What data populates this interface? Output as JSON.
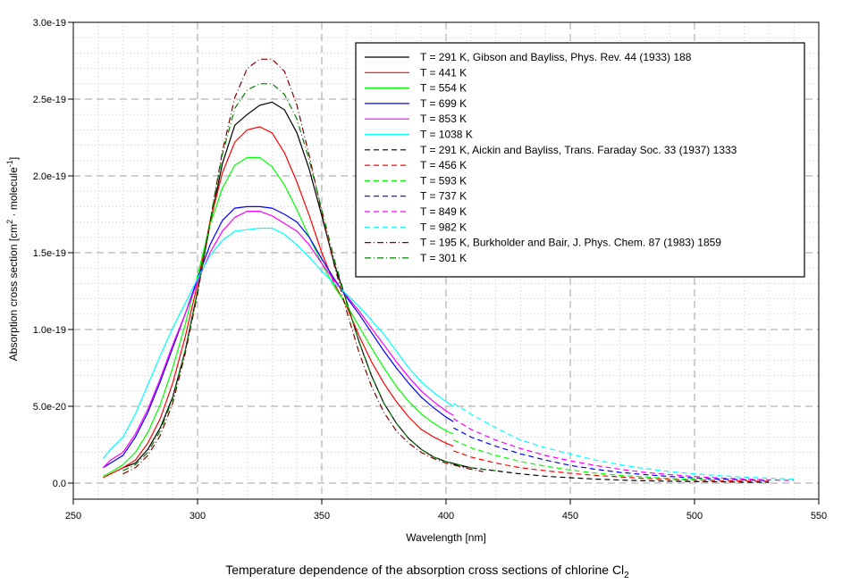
{
  "chart_data": {
    "type": "line",
    "title": "Temperature dependence of the absorption cross sections of chlorine Cl",
    "title_subscript": "2",
    "xlabel": "Wavelength [nm]",
    "ylabel_main": "Absorption cross section [cm",
    "ylabel_sup1": "2",
    "ylabel_mid": " · molecule",
    "ylabel_sup2": "-1",
    "ylabel_end": "]",
    "xlim": [
      250,
      550
    ],
    "ylim": [
      0,
      3e-19
    ],
    "xticks": [
      250,
      300,
      350,
      400,
      450,
      500,
      550
    ],
    "xtick_labels": [
      "250",
      "300",
      "350",
      "400",
      "450",
      "500",
      "550"
    ],
    "yticks": [
      0,
      5e-20,
      1e-19,
      1.5e-19,
      2e-19,
      2.5e-19,
      3e-19
    ],
    "ytick_labels": [
      "0.0",
      "5.0e-20",
      "1.0e-19",
      "1.5e-19",
      "2.0e-19",
      "2.5e-19",
      "3.0e-19"
    ],
    "grid": true,
    "legend_position": "top-right",
    "series": [
      {
        "name": "T = 291 K, Gibson and Bayliss, Phys. Rev. 44 (1933) 188",
        "color": "#000000",
        "style": "solid",
        "x": [
          270,
          275,
          280,
          285,
          290,
          295,
          300,
          305,
          310,
          315,
          320,
          325,
          330,
          335,
          340,
          345,
          350,
          355,
          360,
          365,
          370,
          375,
          380,
          385,
          390,
          395,
          400,
          405,
          410
        ],
        "y": [
          1e-20,
          1.3e-20,
          2.2e-20,
          3.6e-20,
          5.6e-20,
          8.6e-20,
          1.25e-19,
          1.68e-19,
          2.08e-19,
          2.33e-19,
          2.4e-19,
          2.46e-19,
          2.48e-19,
          2.43e-19,
          2.28e-19,
          2.04e-19,
          1.74e-19,
          1.43e-19,
          1.18e-19,
          9.2e-20,
          7e-20,
          5.2e-20,
          3.9e-20,
          2.9e-20,
          2.2e-20,
          1.7e-20,
          1.4e-20,
          1.2e-20,
          1e-20
        ]
      },
      {
        "name": "T = 441 K",
        "color": "#ff0000",
        "style": "solid",
        "x": [
          262,
          265,
          270,
          275,
          280,
          285,
          290,
          295,
          300,
          305,
          310,
          315,
          320,
          325,
          330,
          335,
          340,
          345,
          350,
          355,
          360,
          365,
          370,
          375,
          380,
          385,
          390,
          395,
          400,
          403
        ],
        "y": [
          3.5e-21,
          6e-21,
          1e-20,
          1.5e-20,
          2.6e-20,
          4.2e-20,
          6.5e-20,
          9.5e-20,
          1.3e-19,
          1.7e-19,
          2.02e-19,
          2.22e-19,
          2.3e-19,
          2.32e-19,
          2.28e-19,
          2.15e-19,
          1.96e-19,
          1.74e-19,
          1.5e-19,
          1.3e-19,
          1.15e-19,
          9.6e-20,
          7.9e-20,
          6.5e-20,
          5.3e-20,
          4.3e-20,
          3.5e-20,
          3e-20,
          2.6e-20,
          2.4e-20
        ]
      },
      {
        "name": "T = 554 K",
        "color": "#00ff00",
        "style": "solid",
        "x": [
          262,
          265,
          270,
          275,
          280,
          285,
          290,
          295,
          300,
          305,
          310,
          315,
          320,
          325,
          330,
          335,
          340,
          345,
          350,
          355,
          360,
          365,
          370,
          375,
          380,
          385,
          390,
          395,
          400,
          403
        ],
        "y": [
          4.5e-21,
          7e-21,
          1.2e-20,
          2e-20,
          3.3e-20,
          5.1e-20,
          7.5e-20,
          1.03e-19,
          1.35e-19,
          1.68e-19,
          1.92e-19,
          2.07e-19,
          2.12e-19,
          2.12e-19,
          2.06e-19,
          1.94e-19,
          1.78e-19,
          1.6e-19,
          1.43e-19,
          1.28e-19,
          1.16e-19,
          1.02e-19,
          8.8e-20,
          7.5e-20,
          6.3e-20,
          5.3e-20,
          4.5e-20,
          3.9e-20,
          3.4e-20,
          3.2e-20
        ]
      },
      {
        "name": "T = 699 K",
        "color": "#0000ff",
        "style": "solid",
        "x": [
          262,
          265,
          270,
          275,
          280,
          285,
          290,
          295,
          300,
          305,
          310,
          315,
          320,
          325,
          330,
          335,
          340,
          345,
          350,
          355,
          360,
          365,
          370,
          375,
          380,
          385,
          390,
          395,
          400,
          403
        ],
        "y": [
          1e-20,
          1.3e-20,
          1.8e-20,
          3e-20,
          4.6e-20,
          6.6e-20,
          8.8e-20,
          1.1e-19,
          1.33e-19,
          1.55e-19,
          1.71e-19,
          1.79e-19,
          1.8e-19,
          1.8e-19,
          1.79e-19,
          1.75e-19,
          1.7e-19,
          1.6e-19,
          1.46e-19,
          1.33e-19,
          1.21e-19,
          1.1e-19,
          9.8e-20,
          8.6e-20,
          7.5e-20,
          6.5e-20,
          5.6e-20,
          4.9e-20,
          4.3e-20,
          4e-20
        ]
      },
      {
        "name": "T = 853 K",
        "color": "#ff00ff",
        "style": "solid",
        "x": [
          262,
          265,
          270,
          275,
          280,
          285,
          290,
          295,
          300,
          305,
          310,
          315,
          320,
          325,
          330,
          335,
          340,
          345,
          350,
          355,
          360,
          365,
          370,
          375,
          380,
          385,
          390,
          395,
          400,
          403
        ],
        "y": [
          1e-20,
          1.5e-20,
          2e-20,
          3.2e-20,
          4.8e-20,
          6.8e-20,
          9e-20,
          1.1e-19,
          1.31e-19,
          1.5e-19,
          1.64e-19,
          1.73e-19,
          1.77e-19,
          1.77e-19,
          1.74e-19,
          1.69e-19,
          1.64e-19,
          1.55e-19,
          1.43e-19,
          1.32e-19,
          1.22e-19,
          1.12e-19,
          1.01e-19,
          9e-20,
          7.9e-20,
          6.9e-20,
          6e-20,
          5.3e-20,
          4.7e-20,
          4.4e-20
        ]
      },
      {
        "name": "T = 1038 K",
        "color": "#00ffff",
        "style": "solid",
        "x": [
          262,
          265,
          270,
          275,
          280,
          285,
          290,
          295,
          300,
          305,
          310,
          315,
          320,
          325,
          330,
          335,
          340,
          345,
          350,
          355,
          360,
          365,
          370,
          375,
          380,
          385,
          390,
          395,
          400,
          403
        ],
        "y": [
          1.6e-20,
          2.2e-20,
          3e-20,
          4.5e-20,
          6.4e-20,
          8.3e-20,
          1.01e-19,
          1.17e-19,
          1.33e-19,
          1.48e-19,
          1.58e-19,
          1.64e-19,
          1.65e-19,
          1.66e-19,
          1.66e-19,
          1.62e-19,
          1.55e-19,
          1.47e-19,
          1.38e-19,
          1.3e-19,
          1.23e-19,
          1.15e-19,
          1.06e-19,
          9.7e-20,
          8.6e-20,
          7.5e-20,
          6.6e-20,
          5.9e-20,
          5.3e-20,
          5e-20
        ]
      },
      {
        "name": "T = 291 K, Aickin and Bayliss, Trans. Faraday Soc. 33 (1937) 1333",
        "color": "#000000",
        "style": "dashed",
        "x": [
          403,
          410,
          420,
          430,
          440,
          450,
          460,
          470,
          480,
          490,
          500,
          510,
          520,
          530
        ],
        "y": [
          1.2e-20,
          1e-20,
          8e-21,
          6e-21,
          4.5e-21,
          3.5e-21,
          2.6e-21,
          2e-21,
          1.5e-21,
          1.2e-21,
          1e-21,
          8e-22,
          6e-22,
          5e-22
        ]
      },
      {
        "name": "T = 456 K",
        "color": "#ff0000",
        "style": "dashed",
        "x": [
          403,
          410,
          420,
          430,
          440,
          450,
          460,
          470,
          480,
          490,
          500,
          510,
          520,
          530
        ],
        "y": [
          2.1e-20,
          1.7e-20,
          1.3e-20,
          1e-20,
          8e-21,
          6.4e-21,
          5e-21,
          4e-21,
          3e-21,
          2.4e-21,
          2e-21,
          1.6e-21,
          1.3e-21,
          1.1e-21
        ]
      },
      {
        "name": "T = 593 K",
        "color": "#00ff00",
        "style": "dashed",
        "x": [
          403,
          410,
          420,
          430,
          440,
          450,
          460,
          470,
          480,
          490,
          500,
          510
        ],
        "y": [
          2.8e-20,
          2.3e-20,
          1.8e-20,
          1.4e-20,
          1.1e-20,
          8.5e-21,
          6.5e-21,
          5e-21,
          4e-21,
          3e-21,
          2.4e-21,
          2e-21
        ]
      },
      {
        "name": "T = 737 K",
        "color": "#0000ff",
        "style": "dashed",
        "x": [
          403,
          410,
          420,
          430,
          440,
          450,
          460,
          470,
          480,
          490,
          500,
          510,
          520,
          530
        ],
        "y": [
          3.6e-20,
          3e-20,
          2.4e-20,
          1.9e-20,
          1.5e-20,
          1.15e-20,
          9e-21,
          7e-21,
          5.5e-21,
          4.3e-21,
          3.4e-21,
          2.7e-21,
          2.1e-21,
          1.7e-21
        ]
      },
      {
        "name": "T = 849 K",
        "color": "#ff00ff",
        "style": "dashed",
        "x": [
          403,
          410,
          420,
          430,
          440,
          450,
          460,
          470,
          480,
          490,
          500,
          510,
          520,
          530,
          540
        ],
        "y": [
          4.2e-20,
          3.5e-20,
          2.8e-20,
          2.25e-20,
          1.8e-20,
          1.45e-20,
          1.15e-20,
          9e-21,
          7e-21,
          5.5e-21,
          4.3e-21,
          3.4e-21,
          2.7e-21,
          2.1e-21,
          1.7e-21
        ]
      },
      {
        "name": "T = 982 K",
        "color": "#00ffff",
        "style": "dashed",
        "x": [
          403,
          410,
          420,
          430,
          440,
          450,
          460,
          470,
          480,
          490,
          500,
          510,
          520,
          530,
          540
        ],
        "y": [
          5.2e-20,
          4.5e-20,
          3.6e-20,
          2.8e-20,
          2.3e-20,
          1.9e-20,
          1.5e-20,
          1.2e-20,
          9.5e-21,
          7.5e-21,
          6e-21,
          4.8e-21,
          3.9e-21,
          3.2e-21,
          2.6e-21
        ]
      },
      {
        "name": "T = 195 K, Burkholder and Bair, J. Phys. Chem. 87 (1983) 1859",
        "color": "#800000",
        "style": "dashdot",
        "x": [
          270,
          275,
          280,
          285,
          290,
          295,
          300,
          305,
          310,
          315,
          320,
          325,
          330,
          335,
          340,
          345,
          350,
          355,
          360,
          365,
          370,
          375,
          380,
          385,
          390,
          395,
          400,
          405,
          410,
          415
        ],
        "y": [
          6e-21,
          1e-20,
          1.8e-20,
          3.1e-20,
          5.2e-20,
          8.4e-20,
          1.23e-19,
          1.7e-19,
          2.16e-19,
          2.51e-19,
          2.7e-19,
          2.76e-19,
          2.76e-19,
          2.68e-19,
          2.46e-19,
          2.13e-19,
          1.76e-19,
          1.42e-19,
          1.12e-19,
          8.5e-20,
          6.3e-20,
          4.6e-20,
          3.4e-20,
          2.6e-20,
          2e-20,
          1.6e-20,
          1.3e-20,
          1.1e-20,
          9e-21,
          7.5e-21
        ]
      },
      {
        "name": "T = 301 K",
        "color": "#008000",
        "style": "dashdot",
        "x": [
          270,
          275,
          280,
          285,
          290,
          295,
          300,
          305,
          310,
          315,
          320,
          325,
          330,
          335,
          340,
          345,
          350,
          355,
          360,
          365,
          370,
          375,
          380,
          385,
          390,
          395,
          400,
          405,
          410,
          415,
          420
        ],
        "y": [
          8e-21,
          1.2e-20,
          2e-20,
          3.4e-20,
          5.5e-20,
          8.6e-20,
          1.25e-19,
          1.7e-19,
          2.14e-19,
          2.44e-19,
          2.56e-19,
          2.6e-19,
          2.6e-19,
          2.53e-19,
          2.37e-19,
          2.1e-19,
          1.78e-19,
          1.46e-19,
          1.18e-19,
          9.2e-20,
          7e-20,
          5.2e-20,
          3.9e-20,
          2.9e-20,
          2.2e-20,
          1.7e-20,
          1.4e-20,
          1.2e-20,
          1e-20,
          9e-21,
          8e-21
        ]
      }
    ]
  }
}
